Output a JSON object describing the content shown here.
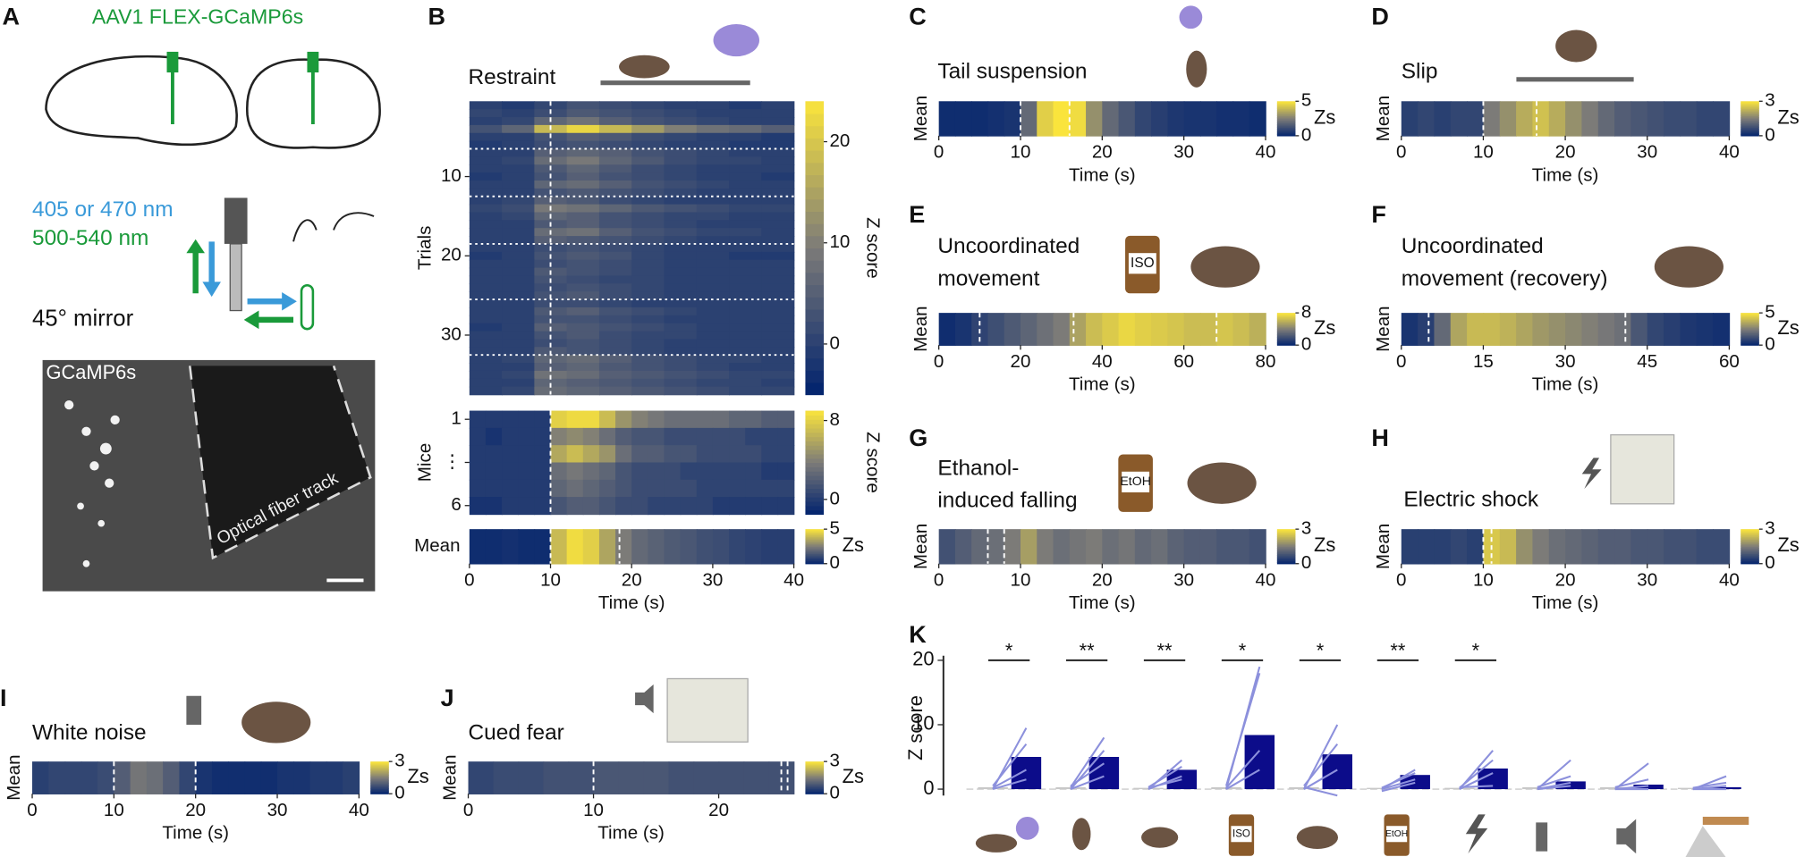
{
  "panel_a": {
    "label": "A",
    "virus": "AAV1 FLEX-GCaMP6s",
    "wavelength_1": "405 or 470 nm",
    "wavelength_2": "500-540 nm",
    "mirror": "45° mirror",
    "image_label": "GCaMP6s",
    "track_label": "Optical fiber track"
  },
  "icon_labels": {
    "iso": "ISO",
    "etoh": "EtOH"
  },
  "chart_data": [
    {
      "type": "heatmap",
      "label": "B",
      "title": [
        "Restraint"
      ],
      "ylabel": "Trials",
      "ylim": [
        0.5,
        37.5
      ],
      "yticks": [
        10,
        20,
        30
      ],
      "xlim": [
        0,
        40
      ],
      "clim": [
        -5,
        24
      ],
      "cticks": [
        0,
        10,
        20
      ],
      "colorbar_label": "Z score",
      "events": [
        10
      ],
      "separators": [
        6.5,
        12.5,
        18.5,
        25.5,
        32.5
      ],
      "values": [
        [
          0,
          -1,
          1,
          3,
          2,
          1,
          0,
          0,
          -1,
          0
        ],
        [
          1,
          0,
          2,
          4,
          3,
          2,
          1,
          0,
          0,
          0
        ],
        [
          0,
          1,
          6,
          8,
          5,
          3,
          2,
          1,
          0,
          0
        ],
        [
          3,
          6,
          18,
          22,
          18,
          14,
          10,
          8,
          7,
          5
        ],
        [
          0,
          0,
          3,
          5,
          4,
          2,
          1,
          0,
          0,
          -1
        ],
        [
          -1,
          0,
          2,
          3,
          2,
          1,
          0,
          0,
          -1,
          -1
        ],
        [
          0,
          0,
          5,
          6,
          5,
          3,
          2,
          1,
          0,
          0
        ],
        [
          0,
          1,
          7,
          9,
          6,
          4,
          2,
          1,
          1,
          0
        ],
        [
          0,
          0,
          4,
          6,
          4,
          2,
          1,
          0,
          0,
          0
        ],
        [
          -1,
          0,
          3,
          5,
          3,
          2,
          1,
          0,
          0,
          -1
        ],
        [
          0,
          0,
          6,
          7,
          5,
          3,
          2,
          1,
          0,
          0
        ],
        [
          0,
          0,
          3,
          4,
          3,
          2,
          1,
          0,
          0,
          0
        ],
        [
          0,
          1,
          5,
          4,
          2,
          1,
          0,
          0,
          0,
          0
        ],
        [
          1,
          2,
          9,
          8,
          6,
          4,
          3,
          2,
          1,
          1
        ],
        [
          0,
          1,
          6,
          5,
          3,
          2,
          1,
          1,
          0,
          0
        ],
        [
          0,
          0,
          4,
          5,
          3,
          2,
          1,
          0,
          0,
          0
        ],
        [
          0,
          0,
          7,
          8,
          5,
          3,
          2,
          1,
          1,
          0
        ],
        [
          0,
          0,
          5,
          4,
          3,
          2,
          1,
          0,
          0,
          0
        ],
        [
          0,
          0,
          2,
          3,
          2,
          1,
          0,
          0,
          0,
          0
        ],
        [
          -1,
          0,
          3,
          4,
          3,
          1,
          0,
          0,
          -1,
          -1
        ],
        [
          0,
          0,
          2,
          3,
          2,
          1,
          0,
          0,
          0,
          0
        ],
        [
          0,
          0,
          4,
          3,
          2,
          1,
          0,
          0,
          0,
          0
        ],
        [
          0,
          0,
          3,
          2,
          1,
          1,
          0,
          0,
          0,
          0
        ],
        [
          0,
          0,
          2,
          3,
          2,
          1,
          0,
          0,
          0,
          0
        ],
        [
          0,
          0,
          3,
          4,
          2,
          1,
          0,
          0,
          0,
          0
        ],
        [
          0,
          0,
          2,
          2,
          1,
          0,
          0,
          0,
          0,
          0
        ],
        [
          0,
          0,
          4,
          5,
          3,
          2,
          1,
          0,
          0,
          0
        ],
        [
          0,
          0,
          3,
          3,
          2,
          1,
          0,
          0,
          0,
          0
        ],
        [
          -1,
          0,
          5,
          4,
          3,
          2,
          1,
          0,
          0,
          0
        ],
        [
          0,
          0,
          3,
          4,
          2,
          1,
          1,
          0,
          0,
          0
        ],
        [
          0,
          0,
          2,
          3,
          2,
          1,
          0,
          0,
          0,
          0
        ],
        [
          0,
          0,
          4,
          3,
          2,
          1,
          0,
          0,
          0,
          0
        ],
        [
          0,
          1,
          6,
          7,
          5,
          3,
          2,
          1,
          1,
          0
        ],
        [
          0,
          0,
          5,
          6,
          4,
          3,
          2,
          1,
          0,
          0
        ],
        [
          0,
          1,
          8,
          7,
          5,
          4,
          3,
          2,
          1,
          1
        ],
        [
          0,
          0,
          6,
          5,
          4,
          3,
          2,
          1,
          1,
          0
        ],
        [
          0,
          1,
          7,
          6,
          5,
          4,
          3,
          2,
          1,
          1
        ]
      ]
    },
    {
      "type": "heatmap",
      "ylabel": "Mice",
      "ylim": [
        0.5,
        6.5
      ],
      "yticks": [
        1,
        {
          "value": 3.5,
          "label": "⋮"
        },
        6
      ],
      "xlim": [
        0,
        40
      ],
      "clim": [
        -1.5,
        9
      ],
      "cticks": [
        0,
        8
      ],
      "colorbar_label": "Z score",
      "events": [
        10
      ],
      "values": [
        [
          0,
          0,
          0,
          0,
          0,
          8,
          8.5,
          8.5,
          7,
          5,
          4,
          3.5,
          3,
          3,
          3,
          3,
          2.5,
          2.5,
          2,
          2
        ],
        [
          0,
          -0.5,
          0,
          0,
          0,
          4,
          4.5,
          4,
          3,
          2,
          1.5,
          1.5,
          1,
          1,
          1,
          1,
          1,
          0.5,
          0.5,
          0.5
        ],
        [
          0,
          0,
          0,
          0,
          0,
          6,
          7,
          6,
          5,
          3,
          2,
          2,
          1.5,
          1.5,
          1,
          1,
          1,
          1,
          0.5,
          0.5
        ],
        [
          0,
          0,
          0,
          0,
          0,
          3,
          3.5,
          3,
          2.5,
          1.5,
          1,
          1,
          1,
          0.5,
          0.5,
          0.5,
          0.5,
          0.5,
          0,
          0
        ],
        [
          0,
          0,
          0,
          0,
          0,
          2.5,
          3,
          2.5,
          2,
          1.5,
          1,
          1,
          1,
          1,
          0.5,
          0.5,
          0.5,
          0.5,
          0.5,
          0.5
        ],
        [
          -0.5,
          -0.5,
          0,
          0,
          0,
          1.5,
          2,
          2,
          1.5,
          1,
          1,
          0.5,
          0.5,
          0.5,
          0.5,
          0,
          0,
          0,
          0,
          0
        ]
      ]
    },
    {
      "type": "heatmap",
      "ylabel": "Mean",
      "xlabel": "Time (s)",
      "xlim": [
        0,
        40
      ],
      "xticks": [
        0,
        10,
        20,
        30,
        40
      ],
      "clim": [
        0,
        5
      ],
      "cticks": [
        0,
        5
      ],
      "colorbar_label": "Zs",
      "events": [
        10,
        18.5
      ],
      "values": [
        0.3,
        0.3,
        0.4,
        0.3,
        0.3,
        4,
        4.8,
        4.5,
        3.5,
        2.5,
        2,
        1.8,
        1.6,
        1.5,
        1.3,
        1.2,
        1,
        0.9,
        0.8,
        0.8
      ]
    },
    {
      "type": "heatmap",
      "label": "C",
      "title": [
        "Tail suspension"
      ],
      "ylabel": "Mean",
      "xlabel": "Time (s)",
      "xlim": [
        0,
        40
      ],
      "xticks": [
        0,
        10,
        20,
        30,
        40
      ],
      "clim": [
        0,
        5
      ],
      "cticks": [
        0,
        5
      ],
      "colorbar_label": "Zs",
      "events": [
        10,
        16
      ],
      "values": [
        0.3,
        0.3,
        0.3,
        0.4,
        0.5,
        2,
        4.5,
        5,
        4.8,
        3,
        2,
        1.5,
        1,
        0.8,
        0.6,
        0.5,
        0.5,
        0.4,
        0.4,
        0.3
      ]
    },
    {
      "type": "heatmap",
      "label": "D",
      "title": [
        "Slip"
      ],
      "ylabel": "Mean",
      "xlabel": "Time (s)",
      "xlim": [
        0,
        40
      ],
      "xticks": [
        0,
        10,
        20,
        30,
        40
      ],
      "clim": [
        0,
        3
      ],
      "cticks": [
        0,
        3
      ],
      "colorbar_label": "Zs",
      "events": [
        10,
        16.5
      ],
      "values": [
        0.5,
        0.6,
        0.5,
        0.6,
        0.6,
        1.5,
        1.8,
        2.2,
        2.5,
        2.2,
        1.8,
        1.5,
        1.2,
        1,
        0.9,
        0.8,
        0.7,
        0.7,
        0.6,
        0.6
      ]
    },
    {
      "type": "heatmap",
      "label": "E",
      "title": [
        "Uncoordinated",
        "movement"
      ],
      "ylabel": "Mean",
      "xlabel": "Time (s)",
      "xlim": [
        0,
        80
      ],
      "xticks": [
        0,
        20,
        40,
        60,
        80
      ],
      "clim": [
        0,
        8
      ],
      "cticks": [
        0,
        8
      ],
      "colorbar_label": "Zs",
      "events": [
        10,
        33,
        68
      ],
      "values": [
        0.5,
        0.8,
        1.5,
        2,
        2.5,
        3,
        3.5,
        4,
        5.5,
        6.5,
        7,
        7.5,
        7.2,
        7,
        6.8,
        6.5,
        6.5,
        6.8,
        6.5,
        6
      ]
    },
    {
      "type": "heatmap",
      "label": "F",
      "title": [
        "Uncoordinated",
        "movement (recovery)"
      ],
      "ylabel": "Mean",
      "xlabel": "Time (s)",
      "xlim": [
        0,
        60
      ],
      "xticks": [
        0,
        15,
        30,
        45,
        60
      ],
      "clim": [
        0,
        5
      ],
      "cticks": [
        0,
        5
      ],
      "colorbar_label": "Zs",
      "events": [
        5,
        41
      ],
      "values": [
        0.5,
        0.8,
        2,
        3.5,
        4,
        4,
        3.8,
        3.5,
        3.2,
        3,
        2.8,
        2.6,
        2.4,
        2.2,
        1.5,
        1,
        0.8,
        0.6,
        0.5,
        0.4
      ]
    },
    {
      "type": "heatmap",
      "label": "G",
      "title": [
        "Ethanol-",
        "induced falling"
      ],
      "ylabel": "Mean",
      "xlabel": "Time (s)",
      "xlim": [
        0,
        40
      ],
      "xticks": [
        0,
        10,
        20,
        30,
        40
      ],
      "clim": [
        0,
        3
      ],
      "cticks": [
        0,
        3
      ],
      "colorbar_label": "Zs",
      "events": [
        6,
        8
      ],
      "values": [
        0.8,
        1,
        1.2,
        1.3,
        1.5,
        2,
        1.5,
        1.3,
        1.4,
        1.5,
        1.3,
        1.4,
        1.2,
        1.3,
        1.1,
        1,
        1,
        0.9,
        0.9,
        0.8
      ]
    },
    {
      "type": "heatmap",
      "label": "H",
      "title": [
        "Electric shock"
      ],
      "ylabel": "Mean",
      "xlabel": "Time (s)",
      "xlim": [
        0,
        40
      ],
      "xticks": [
        0,
        10,
        20,
        30,
        40
      ],
      "clim": [
        0,
        3
      ],
      "cticks": [
        0,
        3
      ],
      "colorbar_label": "Zs",
      "events": [
        10,
        11
      ],
      "values": [
        0.5,
        0.5,
        0.5,
        0.6,
        0.5,
        2.6,
        2.4,
        1.8,
        1.5,
        1.3,
        1.2,
        1.1,
        1,
        1,
        0.9,
        0.9,
        0.8,
        0.8,
        0.7,
        0.7
      ]
    },
    {
      "type": "heatmap",
      "label": "I",
      "title": [
        "White noise"
      ],
      "ylabel": "Mean",
      "xlabel": "Time (s)",
      "xlim": [
        0,
        40
      ],
      "xticks": [
        0,
        10,
        20,
        30,
        40
      ],
      "clim": [
        0,
        3
      ],
      "cticks": [
        0,
        3
      ],
      "colorbar_label": "Zs",
      "events": [
        10,
        20
      ],
      "values": [
        0.5,
        0.6,
        0.6,
        0.6,
        0.7,
        1,
        1.4,
        1.3,
        1,
        0.6,
        0.3,
        0.2,
        0.2,
        0.2,
        0.2,
        0.3,
        0.3,
        0.4,
        0.4,
        0.5
      ]
    },
    {
      "type": "heatmap",
      "label": "J",
      "title": [
        "Cued fear"
      ],
      "ylabel": "Mean",
      "xlabel": "Time (s)",
      "xlim": [
        0,
        26
      ],
      "xticks": [
        0,
        10,
        20
      ],
      "clim": [
        0,
        3
      ],
      "cticks": [
        0,
        3
      ],
      "colorbar_label": "Zs",
      "events": [
        10,
        25,
        25.5
      ],
      "values": [
        0.6,
        0.7,
        0.7,
        0.8,
        0.8,
        0.9,
        0.9,
        0.9,
        0.8,
        0.8,
        0.8,
        0.8,
        0.8
      ]
    },
    {
      "type": "bar",
      "label": "K",
      "ylabel": "Z score",
      "ylim": [
        -1,
        20
      ],
      "yticks": [
        0,
        10,
        20
      ],
      "baseline_color": "#c8c8c8",
      "color": "#0c0c8a",
      "line_color": "#8c90dc",
      "baseline": [
        0.3,
        0.3,
        0.2,
        0.3,
        0.3,
        0.2,
        0.2,
        0.3,
        0.3,
        0.2
      ],
      "values": [
        5,
        5,
        3,
        8.4,
        5.4,
        2.2,
        3.2,
        1.2,
        0.7,
        0.3
      ],
      "significance": [
        "*",
        "**",
        "**",
        "*",
        "*",
        "**",
        "*",
        null,
        null,
        null
      ],
      "mice": [
        [
          [
            0,
            9.5
          ],
          [
            0.5,
            7
          ],
          [
            0.2,
            3
          ],
          [
            0,
            1.5
          ]
        ],
        [
          [
            0.3,
            8
          ],
          [
            0,
            6
          ],
          [
            0.5,
            4
          ],
          [
            0,
            2
          ]
        ],
        [
          [
            0,
            4.5
          ],
          [
            0.3,
            3.5
          ],
          [
            0,
            2
          ],
          [
            0.2,
            1.5
          ]
        ],
        [
          [
            0,
            19
          ],
          [
            0.5,
            18
          ],
          [
            0.2,
            6
          ],
          [
            0,
            3
          ]
        ],
        [
          [
            0,
            10
          ],
          [
            0.5,
            7
          ],
          [
            0,
            3
          ],
          [
            0.3,
            -1
          ]
        ],
        [
          [
            0,
            3
          ],
          [
            0.2,
            2.5
          ],
          [
            0,
            1.5
          ],
          [
            -0.3,
            1
          ]
        ],
        [
          [
            0,
            6
          ],
          [
            0.2,
            4.5
          ],
          [
            0,
            2.5
          ],
          [
            0.3,
            0.5
          ]
        ],
        [
          [
            0,
            4.5
          ],
          [
            0.3,
            2
          ],
          [
            0,
            1
          ],
          [
            0,
            0.5
          ]
        ],
        [
          [
            0,
            4
          ],
          [
            0.3,
            1.5
          ],
          [
            0,
            0.5
          ],
          [
            0,
            0
          ]
        ],
        [
          [
            0,
            2
          ],
          [
            0.2,
            1
          ],
          [
            0,
            0.5
          ],
          [
            0,
            0
          ]
        ]
      ]
    }
  ]
}
